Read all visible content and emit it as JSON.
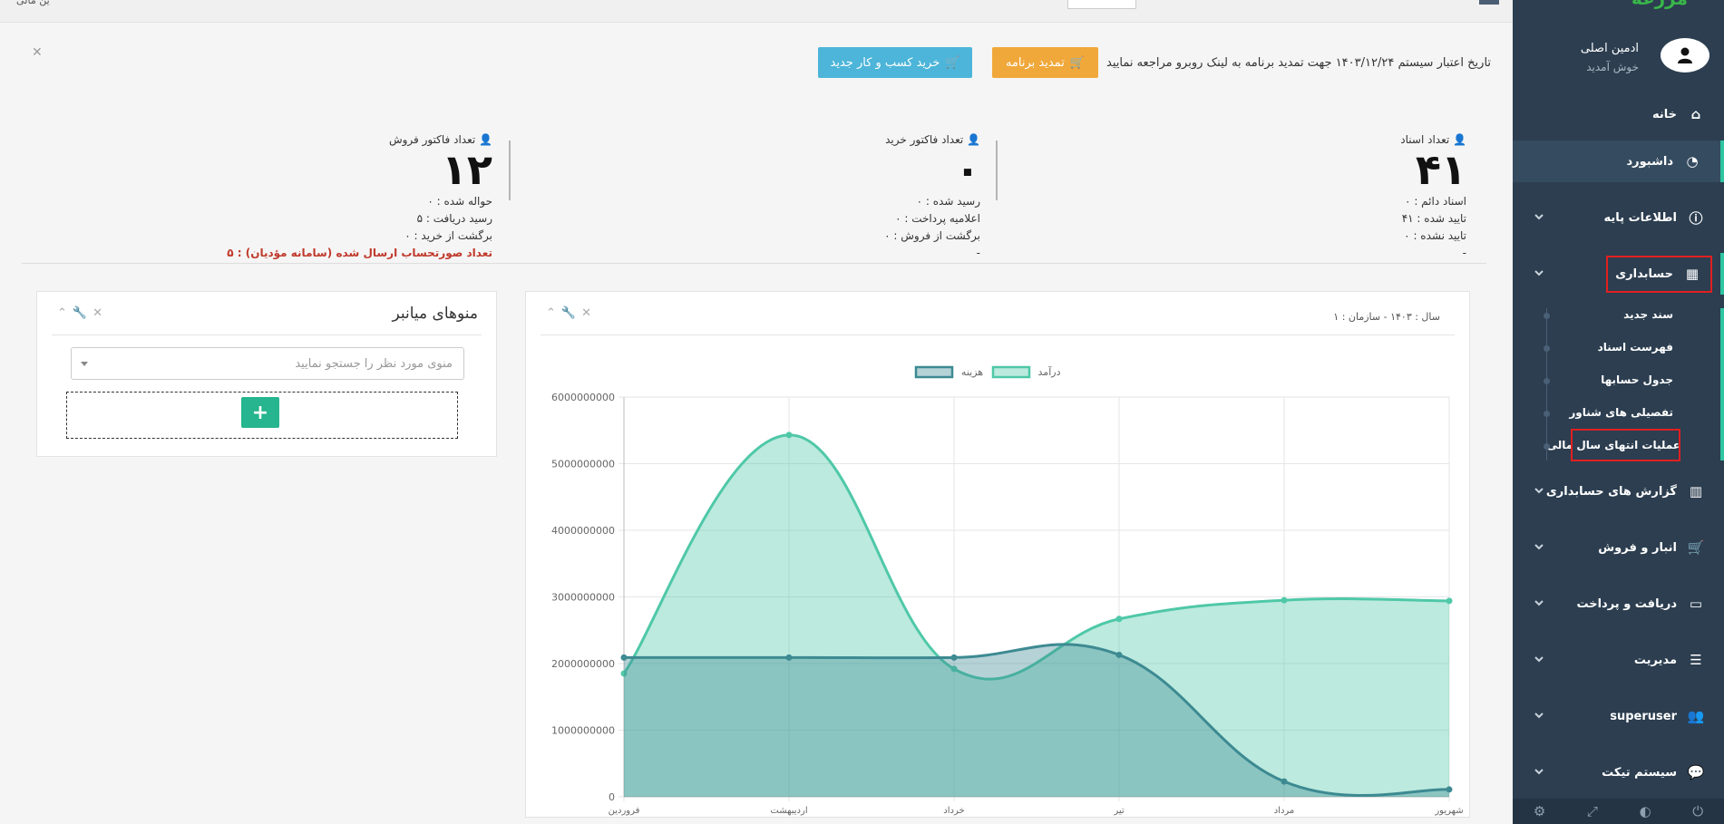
{
  "sidebar": {
    "logo": "مزرعه",
    "user_name": "ادمین اصلی",
    "user_greeting": "خوش آمدید",
    "items": [
      {
        "label": "خانه",
        "icon": "home-icon"
      },
      {
        "label": "داشبورد",
        "icon": "dashboard-icon"
      },
      {
        "label": "اطلاعات پایه",
        "icon": "info-icon"
      },
      {
        "label": "حسابداری",
        "icon": "calculator-icon"
      },
      {
        "label": "گزارش های حسابداری",
        "icon": "bar-chart-icon"
      },
      {
        "label": "انبار و فروش",
        "icon": "cart-icon"
      },
      {
        "label": "دریافت و پرداخت",
        "icon": "credit-card-icon"
      },
      {
        "label": "مدیریت",
        "icon": "server-icon"
      },
      {
        "label": "superuser",
        "icon": "users-icon"
      },
      {
        "label": "سیستم تیکت",
        "icon": "chat-icon"
      }
    ],
    "submenu": [
      {
        "label": "سند جدید"
      },
      {
        "label": "فهرست اسناد"
      },
      {
        "label": "جدول حسابها"
      },
      {
        "label": "تفصیلی های شناور"
      },
      {
        "label": "عملیات انتهای سال مالی"
      }
    ]
  },
  "alert": {
    "text": "تاریخ اعتبار سیستم ۱۴۰۳/۱۲/۲۴ جهت تمدید برنامه به لینک روبرو مراجعه نمایید",
    "renew_label": "تمدید برنامه",
    "buy_label": "خرید کسب و کار جدید"
  },
  "stats": [
    {
      "title": "تعداد اسناد",
      "value": "۴۱",
      "lines": [
        "اسناد دائم : ۰",
        "تایید شده : ۴۱",
        "تایید نشده : ۰",
        "-"
      ]
    },
    {
      "title": "تعداد فاکتور خرید",
      "value": "۰",
      "lines": [
        "رسید شده : ۰",
        "اعلامیه پرداخت : ۰",
        "برگشت از فروش : ۰",
        "-"
      ]
    },
    {
      "title": "تعداد فاکتور فروش",
      "value": "۱۲",
      "lines": [
        "حواله شده : ۰",
        "رسید دریافت : ۵",
        "برگشت از خرید : ۰"
      ],
      "red_line": "تعداد صورتحساب ارسال شده (سامانه مؤدیان) : ۵"
    }
  ],
  "chart_panel": {
    "subtitle": "سال : ۱۴۰۳ - سازمان : ۱"
  },
  "menu_panel": {
    "title": "منوهای میانبر",
    "select_placeholder": "منوی مورد نظر را جستجو نمایید",
    "add_label": "+"
  },
  "chart_data": {
    "type": "area",
    "categories": [
      "فروردین",
      "اردیبهشت",
      "خرداد",
      "تیر",
      "مرداد",
      "شهریور"
    ],
    "series": [
      {
        "name": "درآمد",
        "values": [
          1850000000,
          5430000000,
          1920000000,
          2670000000,
          2950000000,
          2940000000
        ],
        "color": "#4fc8a8"
      },
      {
        "name": "هزینه",
        "values": [
          2090000000,
          2090000000,
          2090000000,
          2130000000,
          230000000,
          110000000
        ],
        "color": "#3d8a92"
      }
    ],
    "ylim": [
      0,
      6000000000
    ],
    "yticks": [
      "0",
      "1000000000",
      "2000000000",
      "3000000000",
      "4000000000",
      "5000000000",
      "6000000000"
    ],
    "legend_position": "top-center",
    "grid": true
  }
}
